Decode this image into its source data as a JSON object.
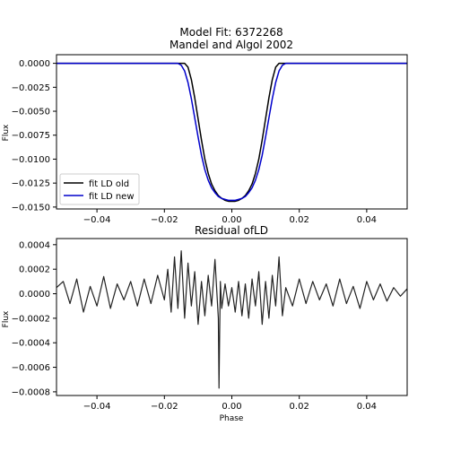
{
  "chart_data": [
    {
      "type": "line",
      "title": "Model Fit: 6372268",
      "subtitle": "Mandel and Algol 2002",
      "xlabel": "",
      "ylabel": "Flux",
      "xlim": [
        -0.052,
        0.052
      ],
      "ylim": [
        -0.0152,
        0.0009
      ],
      "xticks": [
        -0.04,
        -0.02,
        0.0,
        0.02,
        0.04
      ],
      "xtick_labels": [
        "−0.04",
        "−0.02",
        "0.00",
        "0.02",
        "0.04"
      ],
      "yticks": [
        0.0,
        -0.0025,
        -0.005,
        -0.0075,
        -0.01,
        -0.0125,
        -0.015
      ],
      "ytick_labels": [
        "0.0000",
        "−0.0025",
        "−0.0050",
        "−0.0075",
        "−0.0100",
        "−0.0125",
        "−0.0150"
      ],
      "grid": false,
      "legend_position": "lower-left",
      "series": [
        {
          "name": "fit LD old",
          "color": "#000000",
          "x": [
            -0.052,
            -0.014,
            -0.013,
            -0.012,
            -0.011,
            -0.01,
            -0.009,
            -0.008,
            -0.007,
            -0.006,
            -0.005,
            -0.004,
            -0.003,
            -0.002,
            -0.001,
            0.0,
            0.001,
            0.002,
            0.003,
            0.004,
            0.005,
            0.006,
            0.007,
            0.008,
            0.009,
            0.01,
            0.011,
            0.012,
            0.013,
            0.014,
            0.052
          ],
          "y": [
            0.0,
            0.0,
            -0.0004,
            -0.0017,
            -0.0036,
            -0.0058,
            -0.008,
            -0.01,
            -0.0115,
            -0.0126,
            -0.0133,
            -0.0138,
            -0.0141,
            -0.0143,
            -0.0144,
            -0.0144,
            -0.0144,
            -0.0143,
            -0.0141,
            -0.0138,
            -0.0133,
            -0.0126,
            -0.0115,
            -0.01,
            -0.008,
            -0.0058,
            -0.0036,
            -0.0017,
            -0.0004,
            0.0,
            0.0
          ]
        },
        {
          "name": "fit LD new",
          "color": "#0000cc",
          "x": [
            -0.052,
            -0.016,
            -0.015,
            -0.014,
            -0.013,
            -0.012,
            -0.011,
            -0.01,
            -0.009,
            -0.008,
            -0.007,
            -0.006,
            -0.005,
            -0.004,
            -0.003,
            -0.002,
            -0.001,
            0.0,
            0.001,
            0.002,
            0.003,
            0.004,
            0.005,
            0.006,
            0.007,
            0.008,
            0.009,
            0.01,
            0.011,
            0.012,
            0.013,
            0.014,
            0.015,
            0.016,
            0.052
          ],
          "y": [
            0.0,
            0.0,
            -0.0002,
            -0.0008,
            -0.002,
            -0.0037,
            -0.0057,
            -0.0077,
            -0.0096,
            -0.0111,
            -0.0122,
            -0.013,
            -0.0135,
            -0.0139,
            -0.0141,
            -0.0142,
            -0.0143,
            -0.0143,
            -0.0143,
            -0.0142,
            -0.0141,
            -0.0139,
            -0.0135,
            -0.013,
            -0.0122,
            -0.0111,
            -0.0096,
            -0.0077,
            -0.0057,
            -0.0037,
            -0.002,
            -0.0008,
            -0.0002,
            0.0,
            0.0
          ]
        }
      ]
    },
    {
      "type": "line",
      "title": "Residual ofLD",
      "xlabel": "Phase",
      "ylabel": "Flux",
      "xlim": [
        -0.052,
        0.052
      ],
      "ylim": [
        -0.00083,
        0.00045
      ],
      "xticks": [
        -0.04,
        -0.02,
        0.0,
        0.02,
        0.04
      ],
      "xtick_labels": [
        "−0.04",
        "−0.02",
        "0.00",
        "0.02",
        "0.04"
      ],
      "yticks": [
        0.0004,
        0.0002,
        0.0,
        -0.0002,
        -0.0004,
        -0.0006,
        -0.0008
      ],
      "ytick_labels": [
        "0.0004",
        "0.0002",
        "0.0000",
        "−0.0002",
        "−0.0004",
        "−0.0006",
        "−0.0008"
      ],
      "grid": false,
      "series": [
        {
          "color": "#222222",
          "x": [
            -0.052,
            -0.05,
            -0.048,
            -0.046,
            -0.044,
            -0.042,
            -0.04,
            -0.038,
            -0.036,
            -0.034,
            -0.032,
            -0.03,
            -0.028,
            -0.026,
            -0.024,
            -0.022,
            -0.02,
            -0.019,
            -0.018,
            -0.017,
            -0.016,
            -0.015,
            -0.014,
            -0.013,
            -0.012,
            -0.011,
            -0.01,
            -0.009,
            -0.008,
            -0.007,
            -0.006,
            -0.005,
            -0.004,
            -0.0038,
            -0.0036,
            -0.0034,
            -0.003,
            -0.002,
            -0.001,
            0.0,
            0.001,
            0.002,
            0.003,
            0.004,
            0.005,
            0.006,
            0.007,
            0.008,
            0.009,
            0.01,
            0.011,
            0.012,
            0.013,
            0.014,
            0.015,
            0.016,
            0.018,
            0.02,
            0.022,
            0.024,
            0.026,
            0.028,
            0.03,
            0.032,
            0.034,
            0.036,
            0.038,
            0.04,
            0.042,
            0.044,
            0.046,
            0.048,
            0.05,
            0.052
          ],
          "y": [
            5e-05,
            0.0001,
            -8e-05,
            0.00012,
            -0.00015,
            6e-05,
            -0.0001,
            0.00014,
            -0.00012,
            8e-05,
            -5e-05,
            0.0001,
            -0.0001,
            0.00012,
            -8e-05,
            0.00015,
            -5e-05,
            0.0002,
            -0.00015,
            0.0003,
            -0.00012,
            0.00035,
            -0.0002,
            0.00025,
            -0.0001,
            0.00018,
            -0.00025,
            0.0001,
            -0.00018,
            0.00015,
            -0.0001,
            0.00028,
            -0.0002,
            -0.00077,
            -0.0003,
            0.0001,
            -0.00012,
            8e-05,
            -0.0001,
            5e-05,
            -0.00015,
            0.0001,
            -0.00018,
            8e-05,
            -0.0002,
            0.00012,
            -0.0001,
            0.00018,
            -0.00025,
            0.0001,
            -0.0002,
            0.00015,
            -0.0001,
            0.0003,
            -0.00018,
            5e-05,
            -0.0001,
            0.00012,
            -8e-05,
            0.0001,
            -5e-05,
            8e-05,
            -0.0001,
            0.00012,
            -8e-05,
            6e-05,
            -0.00012,
            0.0001,
            -5e-05,
            8e-05,
            -6e-05,
            5e-05,
            -2e-05,
            4e-05
          ]
        }
      ]
    }
  ],
  "legend": {
    "entries": [
      "fit LD old",
      "fit LD new"
    ]
  }
}
